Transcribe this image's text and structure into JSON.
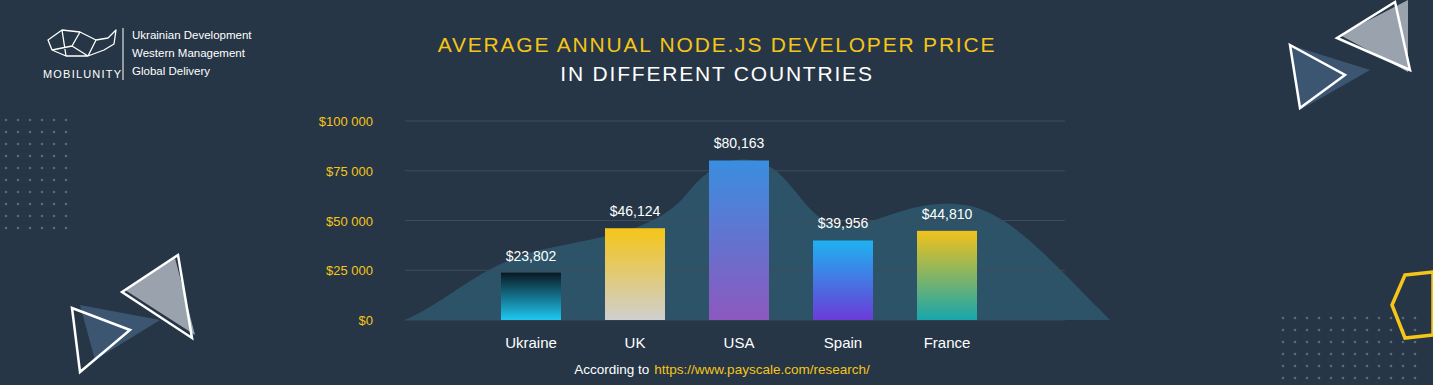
{
  "chart_data": {
    "type": "bar",
    "title": "AVERAGE ANNUAL NODE.JS DEVELOPER PRICE",
    "subtitle": "IN DIFFERENT COUNTRIES",
    "annotations": [
      "MOBILUNITY",
      "Ukrainian Development",
      "Western Management",
      "Global Delivery"
    ],
    "source": {
      "text": "According to",
      "url": "https://www.payscale.com/research/"
    },
    "categories": [
      "Ukraine",
      "UK",
      "USA",
      "Spain",
      "France"
    ],
    "values": [
      23802,
      46124,
      80163,
      39956,
      44810
    ],
    "value_labels": [
      "$23,802",
      "$46,124",
      "$80,163",
      "$39,956",
      "$44,810"
    ],
    "colors": [
      "#1ec8f0",
      "#f5c518",
      "#3a8ee0",
      "#1fb2f0",
      "#f2c21c"
    ],
    "data_labels": true,
    "ylim": [
      0,
      100000
    ],
    "yticks": [
      {
        "value": 0,
        "label": "$0"
      },
      {
        "value": 25000,
        "label": "$25 000"
      },
      {
        "value": 50000,
        "label": "$50 000"
      },
      {
        "value": 75000,
        "label": "$75 000"
      },
      {
        "value": 100000,
        "label": "$100 000"
      }
    ],
    "grid": true
  }
}
